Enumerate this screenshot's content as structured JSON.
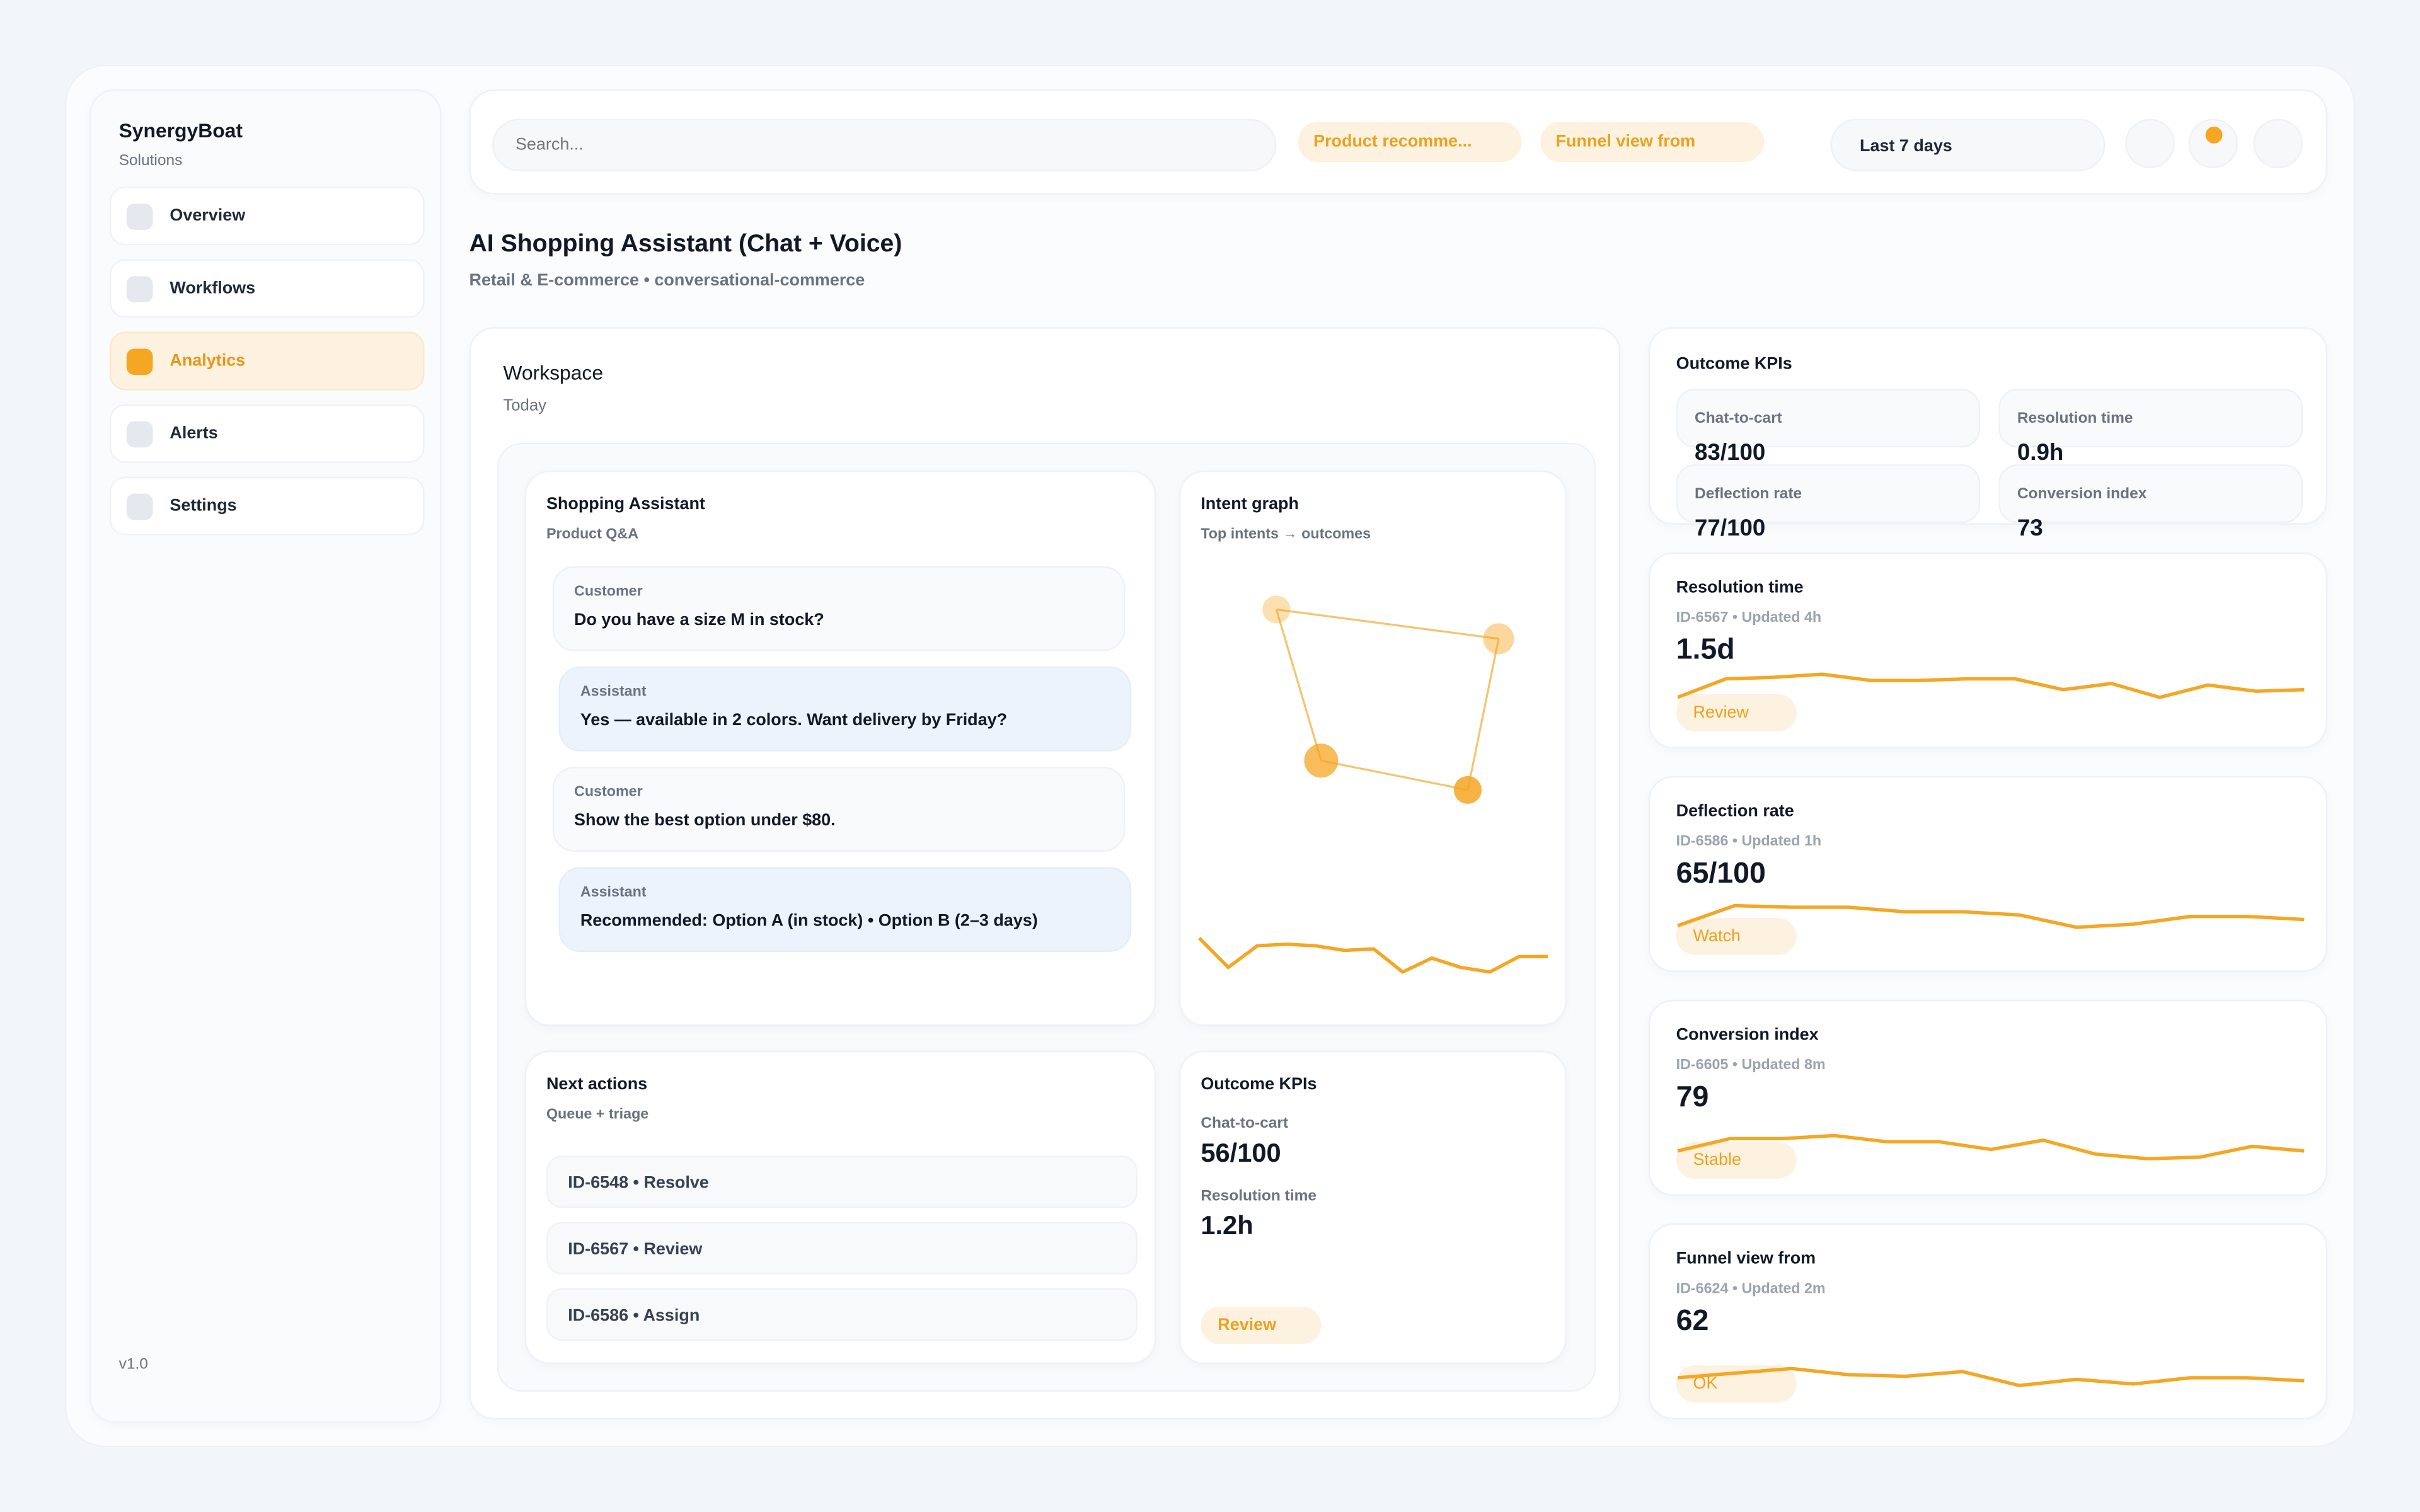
{
  "sidebar": {
    "brand": "SynergyBoat",
    "brand_sub": "Solutions",
    "version": "v1.0",
    "items": [
      {
        "label": "Overview"
      },
      {
        "label": "Workflows"
      },
      {
        "label": "Analytics",
        "active": true
      },
      {
        "label": "Alerts"
      },
      {
        "label": "Settings"
      }
    ]
  },
  "topbar": {
    "search_placeholder": "Search...",
    "chips": [
      "Product recomme...",
      "Funnel view from"
    ],
    "date_range": "Last 7 days",
    "notification_dot_color": "#f5a623"
  },
  "page": {
    "title": "AI Shopping Assistant (Chat + Voice)",
    "subtitle": "Retail & E-commerce • conversational-commerce"
  },
  "workspace": {
    "title": "Workspace",
    "subtitle": "Today",
    "assistant": {
      "title": "Shopping Assistant",
      "subtitle": "Product Q&A",
      "messages": [
        {
          "role": "Customer",
          "text": "Do you have a size M in stock?"
        },
        {
          "role": "Assistant",
          "text": "Yes — available in 2 colors. Want delivery by Friday?"
        },
        {
          "role": "Customer",
          "text": "Show the best option under $80."
        },
        {
          "role": "Assistant",
          "text": "Recommended: Option A (in stock) • Option B (2–3 days)"
        }
      ]
    },
    "intent_graph": {
      "title": "Intent graph",
      "subtitle": "Top intents → outcomes",
      "trend": [
        26,
        7,
        21,
        22,
        21,
        18,
        19,
        4,
        13,
        7,
        4,
        14,
        14
      ]
    },
    "next_actions": {
      "title": "Next actions",
      "subtitle": "Queue + triage",
      "items": [
        "ID-6548 • Resolve",
        "ID-6567 • Review",
        "ID-6586 • Assign"
      ]
    },
    "kpis": {
      "title": "Outcome KPIs",
      "items": [
        {
          "label": "Chat-to-cart",
          "value": "56/100"
        },
        {
          "label": "Resolution time",
          "value": "1.2h"
        }
      ],
      "badge": "Review"
    }
  },
  "outcome_kpis": {
    "title": "Outcome KPIs",
    "items": [
      {
        "label": "Chat-to-cart",
        "value": "83/100"
      },
      {
        "label": "Resolution time",
        "value": "0.9h"
      },
      {
        "label": "Deflection rate",
        "value": "77/100"
      },
      {
        "label": "Conversion index",
        "value": "73"
      }
    ]
  },
  "metrics": [
    {
      "title": "Resolution time",
      "meta": "ID-6567 • Updated 4h",
      "value": "1.5d",
      "badge": "Review",
      "trend": [
        19,
        31,
        32,
        34,
        30,
        30,
        31,
        31,
        24,
        28,
        19,
        27,
        23,
        24
      ]
    },
    {
      "title": "Deflection rate",
      "meta": "ID-6586 • Updated 1h",
      "value": "65/100",
      "badge": "Watch",
      "trend": [
        16,
        29,
        28,
        28,
        25,
        25,
        23,
        15,
        17,
        22,
        22,
        20
      ]
    },
    {
      "title": "Conversion index",
      "meta": "ID-6605 • Updated 8m",
      "value": "79",
      "badge": "Stable",
      "trend": [
        15,
        23,
        23,
        25,
        21,
        21,
        16,
        22,
        13,
        10,
        11,
        18,
        15
      ]
    },
    {
      "title": "Funnel view from",
      "meta": "ID-6624 • Updated 2m",
      "value": "62",
      "badge": "OK",
      "trend": [
        13,
        16,
        19,
        15,
        14,
        17,
        8,
        12,
        9,
        13,
        13,
        11
      ]
    }
  ],
  "colors": {
    "accent": "#f5a623",
    "accent_soft": "#fdf1df"
  }
}
